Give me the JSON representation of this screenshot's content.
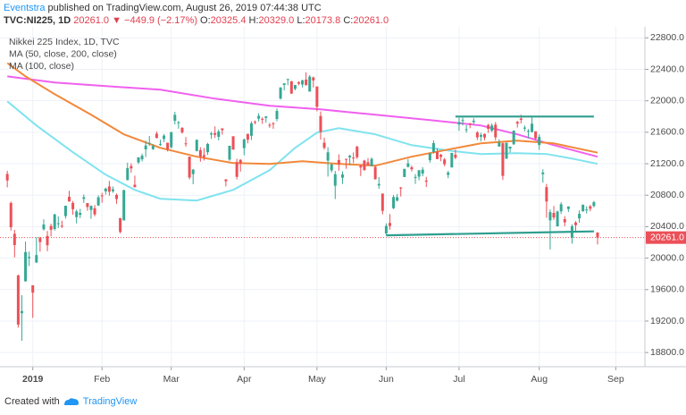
{
  "header": {
    "author": "Eventstra",
    "published": "published on TradingView.com, August 26, 2019 07:44:38 UTC",
    "symbol": "TVC:NI225, 1D",
    "last": "20261.0",
    "change": "▼ −449.9 (−2.17%)",
    "ohlc": [
      [
        "O:",
        "20325.4"
      ],
      [
        "H:",
        "20329.0"
      ],
      [
        "L:",
        "20173.8"
      ],
      [
        "C:",
        "20261.0"
      ]
    ]
  },
  "chart_data": {
    "type": "candlestick",
    "xlim": [
      -2,
      175
    ],
    "ylim": [
      18620,
      22940
    ],
    "grid": true,
    "xticks": [
      {
        "value": 7,
        "label": "2019"
      },
      {
        "value": 26,
        "label": "Feb"
      },
      {
        "value": 45,
        "label": "Mar"
      },
      {
        "value": 65,
        "label": "Apr"
      },
      {
        "value": 85,
        "label": "May"
      },
      {
        "value": 104,
        "label": "Jun"
      },
      {
        "value": 124,
        "label": "Jul"
      },
      {
        "value": 146,
        "label": "Aug"
      },
      {
        "value": 167,
        "label": "Sep"
      }
    ],
    "yticks": [
      {
        "value": 18800,
        "label": "18800.0"
      },
      {
        "value": 19200,
        "label": "19200.0"
      },
      {
        "value": 19600,
        "label": "19600.0"
      },
      {
        "value": 20000,
        "label": "20000.0"
      },
      {
        "value": 20400,
        "label": "20400.0"
      },
      {
        "value": 20800,
        "label": "20800.0"
      },
      {
        "value": 21200,
        "label": "21200.0"
      },
      {
        "value": 21600,
        "label": "21600.0"
      },
      {
        "value": 22000,
        "label": "22000.0"
      },
      {
        "value": 22400,
        "label": "22400.0"
      },
      {
        "value": 22800,
        "label": "22800.0"
      }
    ],
    "candles": {
      "name": "Nikkei 225 Index, 1D, TVC",
      "up_color": "#36a894",
      "down_color": "#ec5058",
      "open": [
        21070,
        20700,
        20310,
        19780,
        19300,
        19706,
        20000,
        19655,
        19944,
        20262,
        20367,
        20282,
        20409,
        20370,
        20439,
        20413,
        20535,
        20780,
        20701,
        20522,
        20550,
        20753,
        20700,
        20612,
        20634,
        20670,
        20797,
        20849,
        20911,
        20851,
        20804,
        20509,
        20479,
        20991,
        21170,
        20933,
        21217,
        21256,
        21383,
        21464,
        21385,
        21582,
        21442,
        21515,
        21467,
        21410,
        21746,
        21726,
        21657,
        21459,
        21290,
        21068,
        21362,
        21373,
        21309,
        21346,
        21571,
        21590,
        21542,
        21650,
        21000,
        21253,
        21549,
        21220,
        21250,
        21398,
        21580,
        21555,
        21732,
        21773,
        21770,
        21783,
        21694,
        21714,
        21769,
        22029,
        22201,
        22270,
        22249,
        22152,
        22235,
        22207,
        22270,
        22117,
        22297,
        22182,
        21807,
        21467,
        21240,
        21116,
        20920,
        21247,
        21022,
        21262,
        21281,
        21278,
        21416,
        21173,
        21240,
        21219,
        21172,
        21159,
        20924,
        20821,
        20314,
        20447,
        20635,
        20731,
        20897,
        21031,
        21160,
        21155,
        21020,
        21036,
        21075,
        20986,
        21245,
        21348,
        21353,
        21315,
        21255,
        21059,
        21154,
        21315,
        21699,
        21752,
        21630,
        21713,
        21730,
        21597,
        21543,
        21578,
        21692,
        21620,
        21697,
        21418,
        21460,
        21263,
        21393,
        21447,
        21732,
        21774,
        21646,
        21616,
        21603,
        21612,
        21438,
        21067,
        20903,
        20480,
        20575,
        20405,
        20595,
        20495,
        20625,
        20262,
        20453,
        20505,
        20595,
        20608,
        20658,
        20663,
        20325.4
      ],
      "high": [
        21110,
        20720,
        20360,
        19790,
        19530,
        20211,
        20084,
        19655,
        20266,
        20266,
        20494,
        20345,
        20438,
        20564,
        20531,
        20476,
        20666,
        20856,
        20726,
        20617,
        20626,
        20809,
        20700,
        20669,
        20676,
        20797,
        20830,
        20895,
        20981,
        20910,
        20822,
        20510,
        20870,
        21213,
        21205,
        21049,
        21281,
        21328,
        21493,
        21553,
        21449,
        21610,
        21504,
        21578,
        21467,
        21602,
        21860,
        21745,
        21664,
        21539,
        21290,
        21134,
        21507,
        21410,
        21400,
        21465,
        21607,
        21675,
        21637,
        21650,
        21005,
        21428,
        21549,
        21263,
        21257,
        21519,
        21580,
        21739,
        21750,
        21843,
        21791,
        21803,
        21718,
        21728,
        21903,
        22173,
        22221,
        22278,
        22252,
        22202,
        22249,
        22268,
        22362,
        22327,
        22307,
        22182,
        21865,
        21531,
        21409,
        21203,
        21108,
        21319,
        21104,
        21262,
        21312,
        21344,
        21430,
        21192,
        21249,
        21273,
        21282,
        21179,
        21030,
        20821,
        20441,
        20560,
        20802,
        20815,
        20905,
        21134,
        21259,
        21177,
        21069,
        21119,
        21157,
        21033,
        21338,
        21497,
        21396,
        21325,
        21272,
        21110,
        21338,
        21379,
        21784,
        21784,
        21691,
        21719,
        21778,
        21615,
        21593,
        21585,
        21708,
        21713,
        21730,
        21511,
        21470,
        21466,
        21418,
        21623,
        21744,
        21823,
        21686,
        21640,
        21791,
        21612,
        21574,
        21129,
        20943,
        20620,
        20663,
        20604,
        20710,
        20533,
        20659,
        20430,
        20470,
        20608,
        20683,
        20659,
        20677,
        20728,
        20329
      ],
      "low": [
        20900,
        20350,
        20010,
        19117,
        18949,
        19700,
        19900,
        19241,
        19940,
        20082,
        20351,
        20088,
        20276,
        20350,
        20384,
        20382,
        20502,
        20718,
        20551,
        20442,
        20510,
        20702,
        20602,
        20500,
        20531,
        20663,
        20704,
        20808,
        20794,
        20831,
        20691,
        20315,
        20479,
        20991,
        21084,
        20900,
        21196,
        21229,
        21286,
        21426,
        21377,
        21521,
        21427,
        21474,
        21356,
        21393,
        21700,
        21645,
        21582,
        21417,
        21000,
        20939,
        21356,
        21225,
        21241,
        21312,
        21516,
        21528,
        21497,
        21570,
        20911,
        21237,
        21378,
        21001,
        21100,
        21307,
        21460,
        21501,
        21702,
        21737,
        21706,
        21721,
        21657,
        21644,
        21740,
        22015,
        22132,
        22198,
        22090,
        22133,
        22197,
        22170,
        22192,
        22117,
        22169,
        21865,
        21506,
        21379,
        21037,
        21089,
        20751,
        21111,
        20943,
        21136,
        21181,
        21209,
        21260,
        21044,
        21113,
        21183,
        21168,
        20998,
        20881,
        20556,
        20289,
        20362,
        20623,
        20721,
        20784,
        21031,
        21153,
        21102,
        20944,
        20989,
        21040,
        20904,
        21214,
        21329,
        21258,
        21231,
        21167,
        21016,
        21150,
        21258,
        21617,
        21687,
        21594,
        21651,
        21705,
        21502,
        21484,
        21497,
        21592,
        21601,
        21494,
        21418,
        20993,
        21263,
        21343,
        21440,
        21660,
        21712,
        21612,
        21526,
        21600,
        21500,
        21376,
        20960,
        20514,
        20110,
        20486,
        20402,
        20561,
        20406,
        20588,
        20184,
        20338,
        20449,
        20591,
        20567,
        20596,
        20645,
        20173.8
      ],
      "close": [
        20987,
        20392,
        20166,
        19155,
        19327,
        20077,
        20015,
        19561,
        20039,
        20204,
        20427,
        20164,
        20360,
        20555,
        20443,
        20402,
        20666,
        20720,
        20622,
        20594,
        20575,
        20774,
        20650,
        20665,
        20556,
        20773,
        20788,
        20884,
        20844,
        20874,
        20751,
        20333,
        20864,
        21144,
        21140,
        20901,
        21281,
        21302,
        21431,
        21464,
        21426,
        21528,
        21449,
        21557,
        21385,
        21602,
        21822,
        21726,
        21597,
        21456,
        21025,
        21125,
        21504,
        21291,
        21287,
        21451,
        21585,
        21567,
        21609,
        21627,
        20977,
        21428,
        21379,
        21033,
        21206,
        21509,
        21505,
        21714,
        21725,
        21808,
        21762,
        21802,
        21688,
        21711,
        21871,
        22169,
        22222,
        22277,
        22091,
        22200,
        22218,
        22260,
        22200,
        22307,
        22259,
        21923,
        21603,
        21402,
        21345,
        21191,
        21067,
        21189,
        21063,
        21250,
        21302,
        21272,
        21283,
        21151,
        21118,
        21183,
        21261,
        21003,
        20943,
        20601,
        20410,
        20409,
        20776,
        20774,
        20885,
        21135,
        21204,
        21129,
        21032,
        21117,
        21125,
        20972,
        21333,
        21462,
        21259,
        21286,
        21194,
        21087,
        21338,
        21276,
        21730,
        21754,
        21638,
        21702,
        21747,
        21535,
        21565,
        21533,
        21644,
        21686,
        21535,
        21469,
        21046,
        21467,
        21417,
        21620,
        21710,
        21757,
        21659,
        21617,
        21709,
        21522,
        21541,
        21088,
        20720,
        20585,
        20517,
        20593,
        20685,
        20455,
        20656,
        20406,
        20419,
        20563,
        20678,
        20619,
        20628,
        20711,
        20261
      ]
    },
    "indicators": [
      {
        "name": "MA (50, close, 200, close)",
        "lines": [
          {
            "color": "#7fe3ee",
            "x": [
              0,
              8,
              18,
              27,
              35,
              42,
              52,
              62,
              72,
              79,
              85,
              91,
              101,
              111,
              121,
              130,
              140,
              148,
              155,
              162
            ],
            "values": [
              21993,
              21686,
              21346,
              21061,
              20868,
              20755,
              20732,
              20868,
              21118,
              21402,
              21595,
              21652,
              21573,
              21436,
              21368,
              21323,
              21334,
              21323,
              21266,
              21198
            ]
          },
          {
            "color": "#f060ee",
            "x": [
              0,
              13,
              27,
              42,
              57,
              72,
              86,
              101,
              116,
              130,
              140,
              150,
              162
            ],
            "values": [
              22310,
              22232,
              22186,
              22141,
              22027,
              21936,
              21891,
              21823,
              21755,
              21686,
              21573,
              21436,
              21289
            ]
          }
        ]
      },
      {
        "name": "MA (100, close)",
        "lines": [
          {
            "color": "#f2883a",
            "x": [
              0,
              5,
              13,
              23,
              32,
              42,
              52,
              62,
              72,
              81,
              91,
              101,
              111,
              121,
              130,
              140,
              150,
              162
            ],
            "values": [
              22480,
              22310,
              22084,
              21823,
              21573,
              21402,
              21289,
              21209,
              21198,
              21232,
              21198,
              21175,
              21289,
              21380,
              21459,
              21493,
              21459,
              21340
            ]
          }
        ]
      }
    ],
    "drawings": [
      {
        "color": "#2f9e8f",
        "x": [
          123,
          161
        ],
        "values": [
          21800,
          21800
        ]
      },
      {
        "color": "#2f9e8f",
        "x": [
          104,
          161
        ],
        "values": [
          20290,
          20340
        ]
      }
    ],
    "price_line": {
      "label": "20261.0",
      "color": "#ec5058"
    }
  },
  "footer": {
    "prefix": "Created with",
    "brand": "TradingView"
  }
}
